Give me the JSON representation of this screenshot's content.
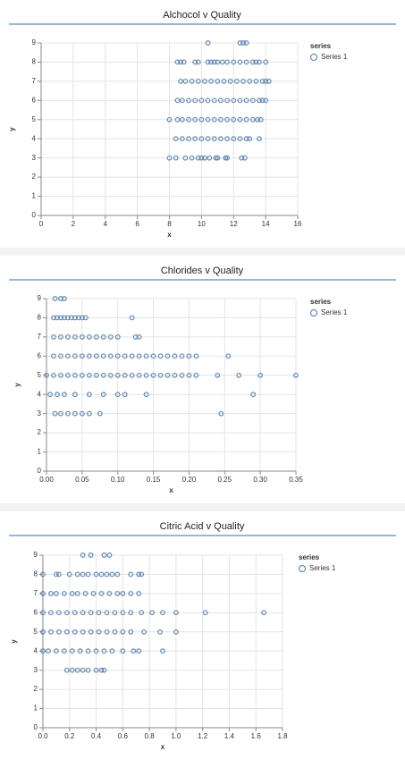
{
  "chart_data": [
    {
      "type": "scatter",
      "title": "Alchocol v Quality",
      "x_label": "x",
      "y_label": "y",
      "legend_title": "series",
      "xlim": [
        0,
        16
      ],
      "xticks": [
        0,
        2,
        4,
        6,
        8,
        10,
        12,
        14,
        16
      ],
      "ylim": [
        0,
        9
      ],
      "yticks": [
        0,
        1,
        2,
        3,
        4,
        5,
        6,
        7,
        8,
        9
      ],
      "grid": true,
      "series": [
        {
          "name": "Series 1",
          "color": "#4c78a8",
          "x": [
            10.4,
            12.4,
            12.6,
            12.8,
            8.5,
            8.7,
            8.9,
            9.6,
            9.8,
            10.4,
            10.6,
            10.8,
            11,
            11.3,
            11.6,
            12,
            12.4,
            12.8,
            13.2,
            13.4,
            13.6,
            14,
            8.7,
            9,
            9.4,
            9.8,
            10.2,
            10.6,
            11,
            11.4,
            11.8,
            12.2,
            12.6,
            13,
            13.4,
            13.8,
            14,
            14.2,
            8.5,
            8.8,
            9.2,
            9.6,
            10,
            10.4,
            10.8,
            11.2,
            11.6,
            12,
            12.4,
            12.8,
            13.2,
            13.6,
            13.8,
            14,
            8,
            8.5,
            8.8,
            9.2,
            9.6,
            10,
            10.4,
            10.8,
            11.2,
            11.6,
            12,
            12.4,
            12.8,
            13.2,
            13.5,
            13.7,
            8.4,
            8.8,
            9.2,
            9.6,
            10,
            10.4,
            10.8,
            11.2,
            11.6,
            12,
            12.4,
            12.8,
            13,
            13.6,
            8,
            8.4,
            9,
            9.4,
            9.8,
            10,
            10.2,
            10.5,
            10.9,
            11,
            11.5,
            11.6,
            12.5,
            12.7
          ],
          "values": [
            9,
            9,
            9,
            9,
            8,
            8,
            8,
            8,
            8,
            8,
            8,
            8,
            8,
            8,
            8,
            8,
            8,
            8,
            8,
            8,
            8,
            8,
            7,
            7,
            7,
            7,
            7,
            7,
            7,
            7,
            7,
            7,
            7,
            7,
            7,
            7,
            7,
            7,
            6,
            6,
            6,
            6,
            6,
            6,
            6,
            6,
            6,
            6,
            6,
            6,
            6,
            6,
            6,
            6,
            5,
            5,
            5,
            5,
            5,
            5,
            5,
            5,
            5,
            5,
            5,
            5,
            5,
            5,
            5,
            5,
            4,
            4,
            4,
            4,
            4,
            4,
            4,
            4,
            4,
            4,
            4,
            4,
            4,
            4,
            3,
            3,
            3,
            3,
            3,
            3,
            3,
            3,
            3,
            3,
            3,
            3,
            3,
            3
          ]
        }
      ]
    },
    {
      "type": "scatter",
      "title": "Chlorides v Quality",
      "x_label": "x",
      "y_label": "y",
      "legend_title": "series",
      "xlim": [
        0,
        0.35
      ],
      "xticks": [
        {
          "value": 0,
          "label": "0.00"
        },
        0.05,
        {
          "value": 0.1,
          "label": "0.10"
        },
        0.15,
        {
          "value": 0.2,
          "label": "0.20"
        },
        0.25,
        {
          "value": 0.3,
          "label": "0.30"
        },
        0.35
      ],
      "ylim": [
        0,
        9
      ],
      "yticks": [
        0,
        1,
        2,
        3,
        4,
        5,
        6,
        7,
        8,
        9
      ],
      "grid": true,
      "series": [
        {
          "name": "Series 1",
          "color": "#4c78a8",
          "x": [
            0.012,
            0.02,
            0.025,
            0.01,
            0.015,
            0.02,
            0.025,
            0.03,
            0.035,
            0.04,
            0.045,
            0.05,
            0.055,
            0.12,
            0.01,
            0.02,
            0.03,
            0.04,
            0.05,
            0.06,
            0.07,
            0.08,
            0.09,
            0.1,
            0.125,
            0.13,
            0.01,
            0.02,
            0.03,
            0.04,
            0.05,
            0.06,
            0.07,
            0.08,
            0.09,
            0.1,
            0.11,
            0.12,
            0.13,
            0.14,
            0.15,
            0.16,
            0.17,
            0.18,
            0.19,
            0.2,
            0.21,
            0.255,
            0,
            0.01,
            0.02,
            0.03,
            0.04,
            0.05,
            0.06,
            0.07,
            0.08,
            0.09,
            0.1,
            0.11,
            0.12,
            0.13,
            0.14,
            0.15,
            0.16,
            0.17,
            0.18,
            0.19,
            0.2,
            0.21,
            0.24,
            0.27,
            0.3,
            0.35,
            0.005,
            0.015,
            0.025,
            0.04,
            0.06,
            0.08,
            0.1,
            0.11,
            0.14,
            0.29,
            0.012,
            0.02,
            0.03,
            0.04,
            0.05,
            0.06,
            0.075,
            0.245
          ],
          "values": [
            9,
            9,
            9,
            8,
            8,
            8,
            8,
            8,
            8,
            8,
            8,
            8,
            8,
            8,
            7,
            7,
            7,
            7,
            7,
            7,
            7,
            7,
            7,
            7,
            7,
            7,
            6,
            6,
            6,
            6,
            6,
            6,
            6,
            6,
            6,
            6,
            6,
            6,
            6,
            6,
            6,
            6,
            6,
            6,
            6,
            6,
            6,
            6,
            5,
            5,
            5,
            5,
            5,
            5,
            5,
            5,
            5,
            5,
            5,
            5,
            5,
            5,
            5,
            5,
            5,
            5,
            5,
            5,
            5,
            5,
            5,
            5,
            5,
            5,
            4,
            4,
            4,
            4,
            4,
            4,
            4,
            4,
            4,
            4,
            3,
            3,
            3,
            3,
            3,
            3,
            3,
            3
          ]
        }
      ]
    },
    {
      "type": "scatter",
      "title": "Citric Acid v Quality",
      "x_label": "x",
      "y_label": "y",
      "legend_title": "series",
      "xlim": [
        0,
        1.8
      ],
      "xticks": [
        {
          "value": 0,
          "label": "0.0"
        },
        0.2,
        0.4,
        0.6,
        0.8,
        {
          "value": 1,
          "label": "1.0"
        },
        1.2,
        1.4,
        1.6,
        1.8
      ],
      "ylim": [
        0,
        9
      ],
      "yticks": [
        0,
        1,
        2,
        3,
        4,
        5,
        6,
        7,
        8,
        9
      ],
      "grid": true,
      "series": [
        {
          "name": "Series 1",
          "color": "#4c78a8",
          "x": [
            0.3,
            0.36,
            0.46,
            0.5,
            0,
            0.1,
            0.12,
            0.2,
            0.26,
            0.3,
            0.34,
            0.4,
            0.44,
            0.48,
            0.52,
            0.56,
            0.66,
            0.72,
            0.74,
            0,
            0.06,
            0.1,
            0.16,
            0.22,
            0.26,
            0.32,
            0.38,
            0.44,
            0.5,
            0.56,
            0.6,
            0.66,
            0.72,
            0,
            0.06,
            0.12,
            0.18,
            0.24,
            0.3,
            0.36,
            0.42,
            0.48,
            0.54,
            0.6,
            0.66,
            0.74,
            0.82,
            0.9,
            1,
            1.22,
            1.66,
            0,
            0.06,
            0.12,
            0.18,
            0.24,
            0.3,
            0.36,
            0.42,
            0.48,
            0.54,
            0.6,
            0.66,
            0.76,
            0.88,
            1,
            0,
            0.04,
            0.1,
            0.16,
            0.22,
            0.28,
            0.34,
            0.4,
            0.46,
            0.52,
            0.6,
            0.68,
            0.72,
            0.9,
            0.18,
            0.22,
            0.26,
            0.3,
            0.34,
            0.4,
            0.44,
            0.46
          ],
          "values": [
            9,
            9,
            9,
            9,
            8,
            8,
            8,
            8,
            8,
            8,
            8,
            8,
            8,
            8,
            8,
            8,
            8,
            8,
            8,
            7,
            7,
            7,
            7,
            7,
            7,
            7,
            7,
            7,
            7,
            7,
            7,
            7,
            7,
            6,
            6,
            6,
            6,
            6,
            6,
            6,
            6,
            6,
            6,
            6,
            6,
            6,
            6,
            6,
            6,
            6,
            6,
            5,
            5,
            5,
            5,
            5,
            5,
            5,
            5,
            5,
            5,
            5,
            5,
            5,
            5,
            5,
            4,
            4,
            4,
            4,
            4,
            4,
            4,
            4,
            4,
            4,
            4,
            4,
            4,
            4,
            3,
            3,
            3,
            3,
            3,
            3,
            3,
            3
          ]
        }
      ]
    }
  ]
}
